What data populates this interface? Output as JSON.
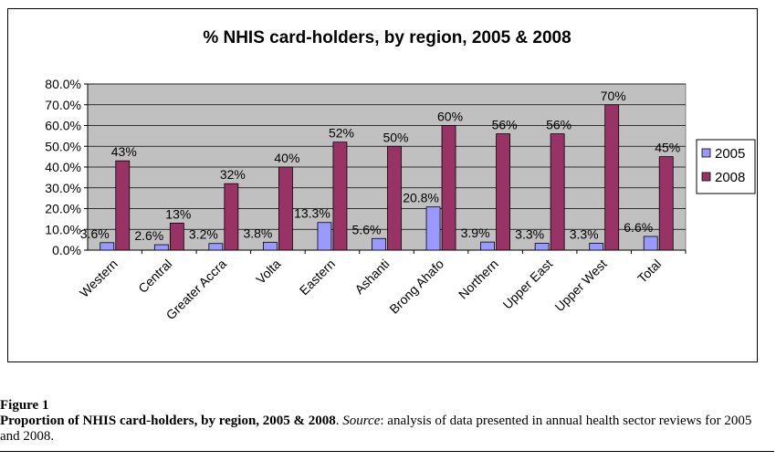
{
  "chart_data": {
    "type": "bar",
    "title": "% NHIS card-holders, by region, 2005 & 2008",
    "categories": [
      "Western",
      "Central",
      "Greater Accra",
      "Volta",
      "Eastern",
      "Ashanti",
      "Brong Ahafo",
      "Northern",
      "Upper East",
      "Upper West",
      "Total"
    ],
    "series": [
      {
        "name": "2005",
        "color": "#9999ff",
        "values": [
          3.6,
          2.6,
          3.2,
          3.8,
          13.3,
          5.6,
          20.8,
          3.9,
          3.3,
          3.3,
          6.6
        ],
        "labels": [
          "3.6%",
          "2.6%",
          "3.2%",
          "3.8%",
          "13.3%",
          "5.6%",
          "20.8%",
          "3.9%",
          "3.3%",
          "3.3%",
          "6.6%"
        ]
      },
      {
        "name": "2008",
        "color": "#993366",
        "values": [
          43,
          13,
          32,
          40,
          52,
          50,
          60,
          56,
          56,
          70,
          45
        ],
        "labels": [
          "43%",
          "13%",
          "32%",
          "40%",
          "52%",
          "50%",
          "60%",
          "56%",
          "56%",
          "70%",
          "45%"
        ]
      }
    ],
    "ylim": [
      0,
      80
    ],
    "yticks": [
      "0.0%",
      "10.0%",
      "20.0%",
      "30.0%",
      "40.0%",
      "50.0%",
      "60.0%",
      "70.0%",
      "80.0%"
    ],
    "grid": true,
    "plot_background": "#c0c0c0",
    "legend_position": "right",
    "xlabel": "",
    "ylabel": ""
  },
  "caption": {
    "figure_label": "Figure 1",
    "title": "Proportion of NHIS card-holders, by region, 2005 & 2008",
    "source_label": "Source",
    "text": ": analysis of data presented in annual health sector reviews for 2005 and 2008."
  }
}
